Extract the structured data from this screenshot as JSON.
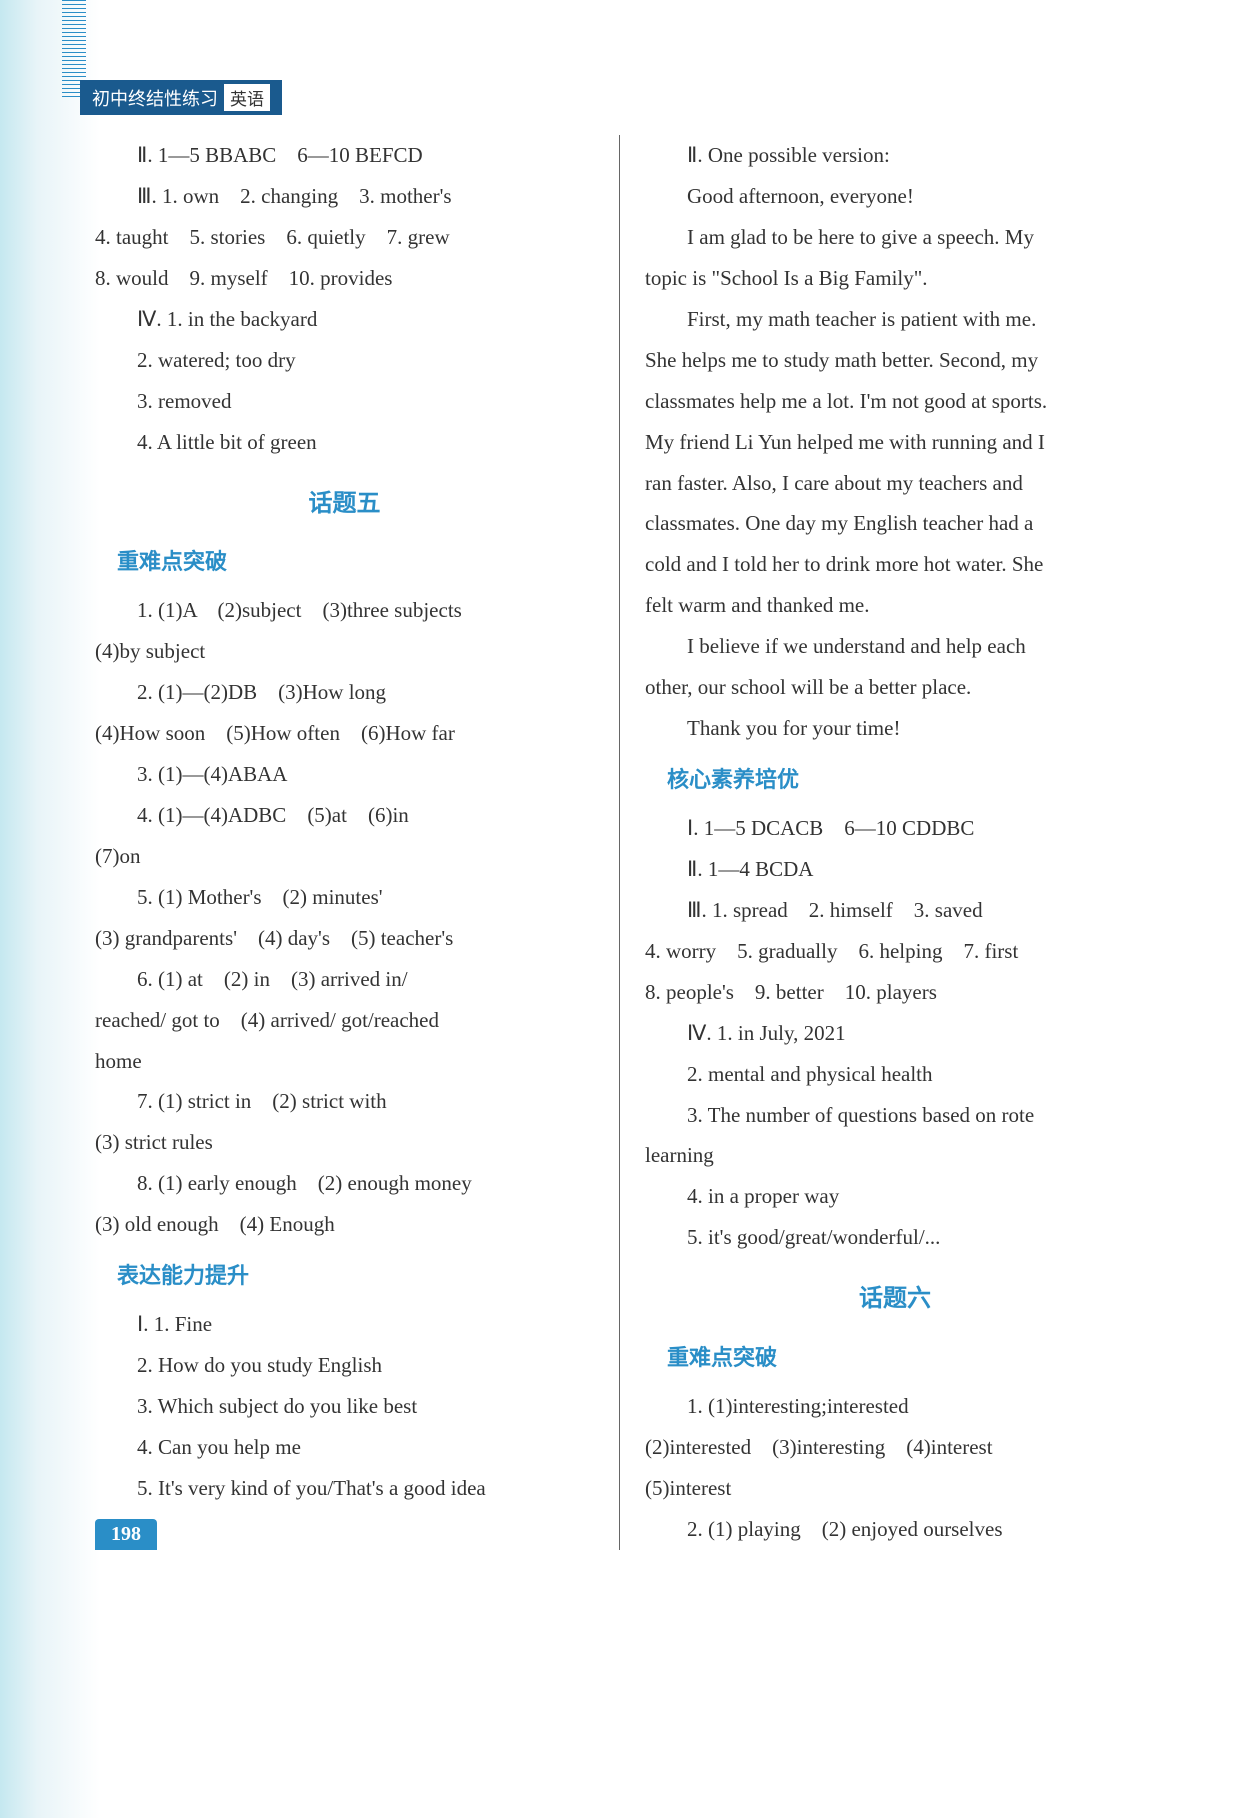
{
  "header": {
    "title": "初中终结性练习",
    "subject": "英语"
  },
  "pageNumber": "198",
  "leftColumn": {
    "lines": [
      {
        "text": "Ⅱ. 1—5 BBABC　6—10 BEFCD",
        "indent": true
      },
      {
        "text": "Ⅲ. 1. own　2. changing　3. mother's",
        "indent": true
      },
      {
        "text": "4. taught　5. stories　6. quietly　7. grew"
      },
      {
        "text": "8. would　9. myself　10. provides"
      },
      {
        "text": "Ⅳ. 1.  in the backyard",
        "indent": true
      },
      {
        "text": "2.  watered; too dry",
        "indent": true
      },
      {
        "text": "3.  removed",
        "indent": true
      },
      {
        "text": "4.  A little bit of green",
        "indent": true
      }
    ],
    "sectionTitle": "话题五",
    "subsection1": "重难点突破",
    "lines2": [
      {
        "text": "1. (1)A　(2)subject　(3)three subjects",
        "indent": true
      },
      {
        "text": "(4)by subject"
      },
      {
        "text": "2. (1)—(2)DB　(3)How long",
        "indent": true
      },
      {
        "text": "(4)How soon　(5)How often　(6)How far"
      },
      {
        "text": "3. (1)—(4)ABAA",
        "indent": true
      },
      {
        "text": "4. (1)—(4)ADBC　(5)at　(6)in",
        "indent": true
      },
      {
        "text": "(7)on"
      },
      {
        "text": "5. (1) Mother's　(2) minutes'",
        "indent": true
      },
      {
        "text": "(3) grandparents'　(4) day's　(5) teacher's"
      },
      {
        "text": "6. (1)  at　(2)  in　(3)  arrived in/",
        "indent": true
      },
      {
        "text": "reached/ got to　(4) arrived/ got/reached"
      },
      {
        "text": "home"
      },
      {
        "text": "7. (1) strict in　(2) strict with",
        "indent": true
      },
      {
        "text": "(3) strict rules"
      },
      {
        "text": "8. (1) early enough　(2) enough money",
        "indent": true
      },
      {
        "text": "(3) old enough　(4) Enough"
      }
    ],
    "subsection2": "表达能力提升",
    "lines3": [
      {
        "text": "Ⅰ. 1. Fine",
        "indent": true
      },
      {
        "text": "2. How do you study English",
        "indent": true
      },
      {
        "text": "3. Which subject do you like best",
        "indent": true
      },
      {
        "text": "4. Can you help me",
        "indent": true
      },
      {
        "text": "5. It's very kind of you/That's a good idea",
        "indent": true
      }
    ]
  },
  "rightColumn": {
    "lines": [
      {
        "text": "Ⅱ. One possible version:",
        "indent": true
      },
      {
        "text": "Good afternoon, everyone!",
        "indent": true
      },
      {
        "text": "I am glad to be here to give a speech. My",
        "indent": true
      },
      {
        "text": "topic is \"School Is a Big Family\"."
      },
      {
        "text": "First, my math teacher is patient with me.",
        "indent": true
      },
      {
        "text": "She helps me to study math better. Second, my"
      },
      {
        "text": "classmates help me a lot. I'm not good at sports."
      },
      {
        "text": "My friend Li Yun helped me with running and I"
      },
      {
        "text": "ran faster. Also, I care about my teachers and"
      },
      {
        "text": "classmates. One day my English teacher had a"
      },
      {
        "text": "cold and I told her to drink more hot water. She"
      },
      {
        "text": "felt warm and thanked me."
      },
      {
        "text": "I believe if we understand and help each",
        "indent": true
      },
      {
        "text": "other, our school will be a better place."
      },
      {
        "text": "Thank you for your time!",
        "indent": true
      }
    ],
    "subsection1": "核心素养培优",
    "lines2": [
      {
        "text": "Ⅰ. 1—5 DCACB　6—10 CDDBC",
        "indent": true
      },
      {
        "text": "Ⅱ. 1—4 BCDA",
        "indent": true
      },
      {
        "text": "Ⅲ. 1. spread　2. himself　3. saved",
        "indent": true
      },
      {
        "text": "4. worry　5. gradually　6. helping　7. first"
      },
      {
        "text": "8. people's　9. better　10. players"
      },
      {
        "text": "Ⅳ. 1.  in July, 2021",
        "indent": true
      },
      {
        "text": "2.  mental and physical health",
        "indent": true
      },
      {
        "text": "3.  The number of questions based on rote",
        "indent": true
      },
      {
        "text": "learning"
      },
      {
        "text": "4.  in a proper way",
        "indent": true
      },
      {
        "text": "5.  it's good/great/wonderful/...",
        "indent": true
      }
    ],
    "sectionTitle": "话题六",
    "subsection2": "重难点突破",
    "lines3": [
      {
        "text": "1. (1)interesting;interested",
        "indent": true
      },
      {
        "text": "(2)interested　(3)interesting　(4)interest"
      },
      {
        "text": "(5)interest"
      },
      {
        "text": "2. (1) playing　(2) enjoyed ourselves",
        "indent": true
      }
    ]
  }
}
